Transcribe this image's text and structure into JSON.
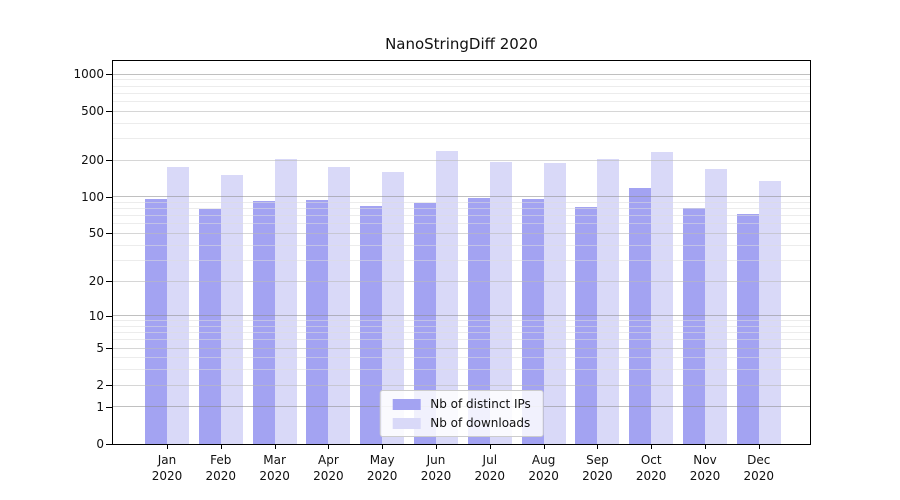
{
  "chart_data": {
    "type": "bar",
    "title": "NanoStringDiff 2020",
    "categories": [
      "Jan",
      "Feb",
      "Mar",
      "Apr",
      "May",
      "Jun",
      "Jul",
      "Aug",
      "Sep",
      "Oct",
      "Nov",
      "Dec"
    ],
    "year": "2020",
    "series": [
      {
        "name": "Nb of distinct IPs",
        "color": "#a3a3f2",
        "values": [
          97,
          79,
          93,
          95,
          84,
          90,
          98,
          96,
          83,
          118,
          81,
          72
        ]
      },
      {
        "name": "Nb of downloads",
        "color": "#d9d9f8",
        "values": [
          174,
          150,
          205,
          174,
          159,
          238,
          193,
          190,
          205,
          233,
          168,
          134
        ]
      }
    ],
    "yticks": [
      0,
      1,
      2,
      5,
      10,
      20,
      50,
      100,
      200,
      500,
      1000
    ],
    "xlabel": "",
    "ylabel": "",
    "scale": "log10(x+1)",
    "grid": "both",
    "legend_position": "lower center inside"
  },
  "colors": {
    "bar_dark": "#a3a3f2",
    "bar_light": "#d9d9f8",
    "grid_major": "#8c8c8c",
    "grid_labeled": "#bbbbbb",
    "grid_minor": "#dcdcdc",
    "spine": "#000000",
    "background": "#ffffff"
  }
}
